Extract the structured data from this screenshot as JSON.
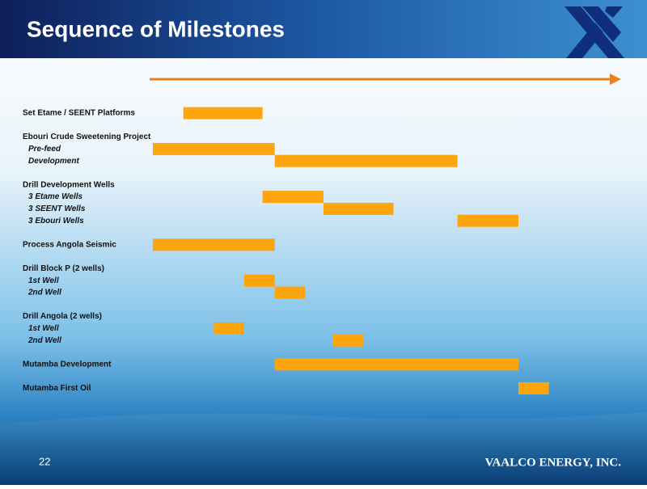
{
  "header": {
    "title": "Sequence of Milestones"
  },
  "footer": {
    "page": "22",
    "company": "VAALCO ENERGY, INC."
  },
  "chart_data": {
    "type": "gantt",
    "color": "#FDA50F",
    "arrow_color": "#E8821E",
    "xlim": [
      0,
      15
    ],
    "groups": [
      {
        "label": "Set Etame / SEENT Platforms",
        "start": 1,
        "end": 3.6,
        "items": []
      },
      {
        "label": "Ebouri Crude Sweetening Project",
        "items": [
          {
            "label": "Pre-feed",
            "start": 0,
            "end": 4
          },
          {
            "label": "Development",
            "start": 4,
            "end": 10
          }
        ]
      },
      {
        "label": "Drill Development Wells",
        "items": [
          {
            "label": "3 Etame Wells",
            "start": 3.6,
            "end": 5.6
          },
          {
            "label": "3 SEENT Wells",
            "start": 5.6,
            "end": 7.9
          },
          {
            "label": "3 Ebouri Wells",
            "start": 10,
            "end": 12
          }
        ]
      },
      {
        "label": "Process Angola Seismic",
        "start": 0,
        "end": 4,
        "items": []
      },
      {
        "label": "Drill Block P (2 wells)",
        "items": [
          {
            "label": "1st Well",
            "start": 3,
            "end": 4
          },
          {
            "label": "2nd Well",
            "start": 4,
            "end": 5
          }
        ]
      },
      {
        "label": "Drill Angola (2 wells)",
        "items": [
          {
            "label": "1st Well",
            "start": 2,
            "end": 3
          },
          {
            "label": "2nd Well",
            "start": 5.9,
            "end": 6.9
          }
        ]
      },
      {
        "label": "Mutamba Development",
        "start": 4,
        "end": 12,
        "items": []
      },
      {
        "label": "Mutamba First Oil",
        "start": 12,
        "end": 13,
        "items": []
      }
    ]
  }
}
